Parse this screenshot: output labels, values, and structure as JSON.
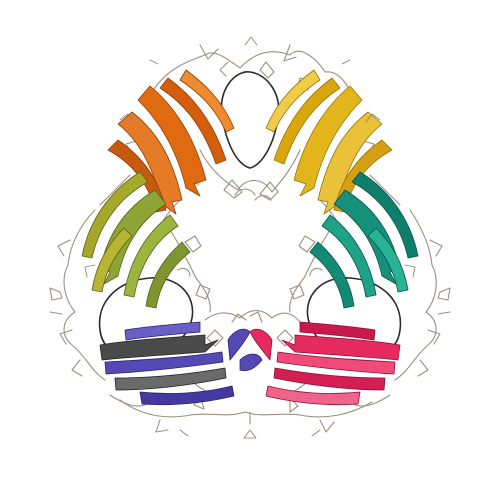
{
  "figure": {
    "background": "#ffffff",
    "coil_color": "#9c8f80",
    "loop_fill": "#ffffff",
    "loop_stroke": "#2b2b2b",
    "subunits": [
      {
        "name": "orange-domain",
        "color": "#e06a12",
        "dark": "#8f3f05"
      },
      {
        "name": "yellow-domain",
        "color": "#e3b51c",
        "dark": "#9a7405"
      },
      {
        "name": "teal-domain",
        "color": "#15907a",
        "dark": "#0a5549"
      },
      {
        "name": "pink-domain",
        "color": "#e52a5f",
        "dark": "#8c1236"
      },
      {
        "name": "blue-domain",
        "color": "#5648b5",
        "dark": "#2d2370"
      },
      {
        "name": "olive-domain",
        "color": "#8fa436",
        "dark": "#55641b"
      }
    ]
  }
}
